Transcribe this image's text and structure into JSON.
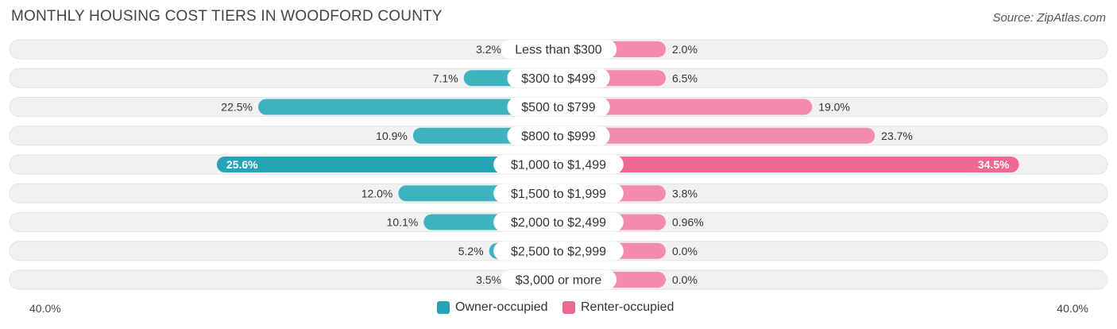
{
  "title": "MONTHLY HOUSING COST TIERS IN WOODFORD COUNTY",
  "source": "Source: ZipAtlas.com",
  "colors": {
    "owner": "#3fb2c0",
    "owner_strong": "#27a3b7",
    "renter": "#f48bac",
    "renter_strong": "#f06890",
    "row_bg": "#f1f1f1"
  },
  "chart_data": {
    "type": "bar",
    "orientation": "diverging-horizontal",
    "categories": [
      "Less than $300",
      "$300 to $499",
      "$500 to $799",
      "$800 to $999",
      "$1,000 to $1,499",
      "$1,500 to $1,999",
      "$2,000 to $2,499",
      "$2,500 to $2,999",
      "$3,000 or more"
    ],
    "series": [
      {
        "name": "Owner-occupied",
        "values": [
          3.2,
          7.1,
          22.5,
          10.9,
          25.6,
          12.0,
          10.1,
          5.2,
          3.5
        ],
        "labels": [
          "3.2%",
          "7.1%",
          "22.5%",
          "10.9%",
          "25.6%",
          "12.0%",
          "10.1%",
          "5.2%",
          "3.5%"
        ]
      },
      {
        "name": "Renter-occupied",
        "values": [
          2.0,
          6.5,
          19.0,
          23.7,
          34.5,
          3.8,
          0.96,
          0.0,
          0.0
        ],
        "labels": [
          "2.0%",
          "6.5%",
          "19.0%",
          "23.7%",
          "34.5%",
          "3.8%",
          "0.96%",
          "0.0%",
          "0.0%"
        ]
      }
    ],
    "xlim": [
      -40,
      40
    ],
    "axis_left_label": "40.0%",
    "axis_right_label": "40.0%",
    "legend_position": "bottom-center"
  }
}
